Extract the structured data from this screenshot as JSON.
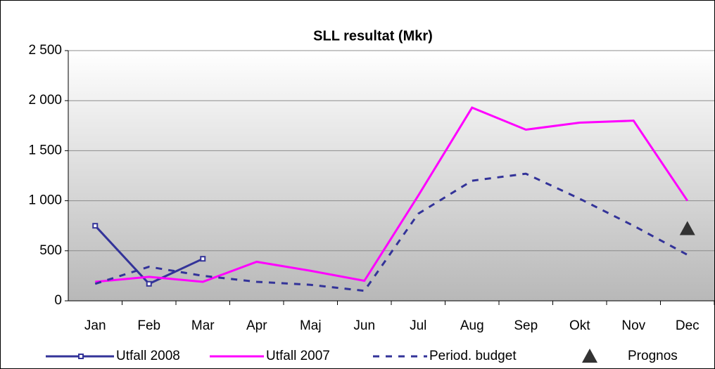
{
  "chart_data": {
    "type": "line",
    "title": "SLL resultat (Mkr)",
    "categories": [
      "Jan",
      "Feb",
      "Mar",
      "Apr",
      "Maj",
      "Jun",
      "Jul",
      "Aug",
      "Sep",
      "Okt",
      "Nov",
      "Dec"
    ],
    "series": [
      {
        "name": "Utfall 2008",
        "color": "#333399",
        "marker": "square",
        "dashed": false,
        "line": true,
        "values": [
          750,
          170,
          420,
          null,
          null,
          null,
          null,
          null,
          null,
          null,
          null,
          null
        ]
      },
      {
        "name": "Utfall 2007",
        "color": "#ff00ff",
        "marker": "none",
        "dashed": false,
        "line": true,
        "values": [
          190,
          240,
          190,
          390,
          300,
          200,
          1050,
          1930,
          1710,
          1780,
          1800,
          1000
        ]
      },
      {
        "name": "Period. budget",
        "color": "#333399",
        "marker": "none",
        "dashed": true,
        "line": true,
        "values": [
          170,
          340,
          250,
          190,
          160,
          100,
          870,
          1200,
          1270,
          1020,
          750,
          460
        ]
      },
      {
        "name": "Prognos",
        "color": "#333333",
        "marker": "triangle",
        "dashed": false,
        "line": false,
        "values": [
          null,
          null,
          null,
          null,
          null,
          null,
          null,
          null,
          null,
          null,
          null,
          720
        ]
      }
    ],
    "ylim": [
      0,
      2500
    ],
    "yticks": [
      0,
      {
        "value": 500,
        "label": "500"
      },
      {
        "value": 1000,
        "label": "1 000"
      },
      {
        "value": 1500,
        "label": "1 500"
      },
      {
        "value": 2000,
        "label": "2 000"
      },
      {
        "value": 2500,
        "label": "2 500"
      }
    ],
    "grid": true,
    "legend": "bottom"
  }
}
